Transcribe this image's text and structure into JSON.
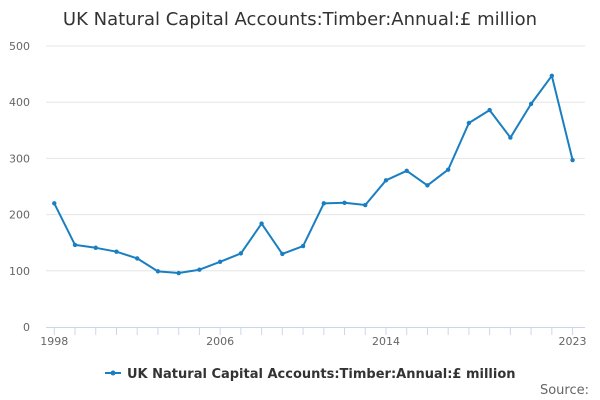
{
  "chart_data": {
    "type": "line",
    "title": "UK Natural Capital Accounts:Timber:Annual:£ million",
    "xlabel": "",
    "ylabel": "",
    "x": [
      1998,
      1999,
      2000,
      2001,
      2002,
      2003,
      2004,
      2005,
      2006,
      2007,
      2008,
      2009,
      2010,
      2011,
      2012,
      2013,
      2014,
      2015,
      2016,
      2017,
      2018,
      2019,
      2020,
      2021,
      2022,
      2023
    ],
    "x_ticks": [
      "1998",
      "2006",
      "2014",
      "2023"
    ],
    "y_ticks": [
      "0",
      "100",
      "200",
      "300",
      "400",
      "500"
    ],
    "ylim": [
      0,
      500
    ],
    "grid": "horizontal",
    "series": [
      {
        "name": "UK Natural Capital Accounts:Timber:Annual:£ million",
        "color": "#1a7fc1",
        "values": [
          220,
          146,
          141,
          134,
          122,
          99,
          96,
          102,
          116,
          131,
          184,
          130,
          144,
          220,
          221,
          217,
          261,
          278,
          252,
          280,
          363,
          386,
          337,
          397,
          447,
          297
        ]
      }
    ],
    "legend_position": "bottom",
    "source_label": "Source:"
  }
}
